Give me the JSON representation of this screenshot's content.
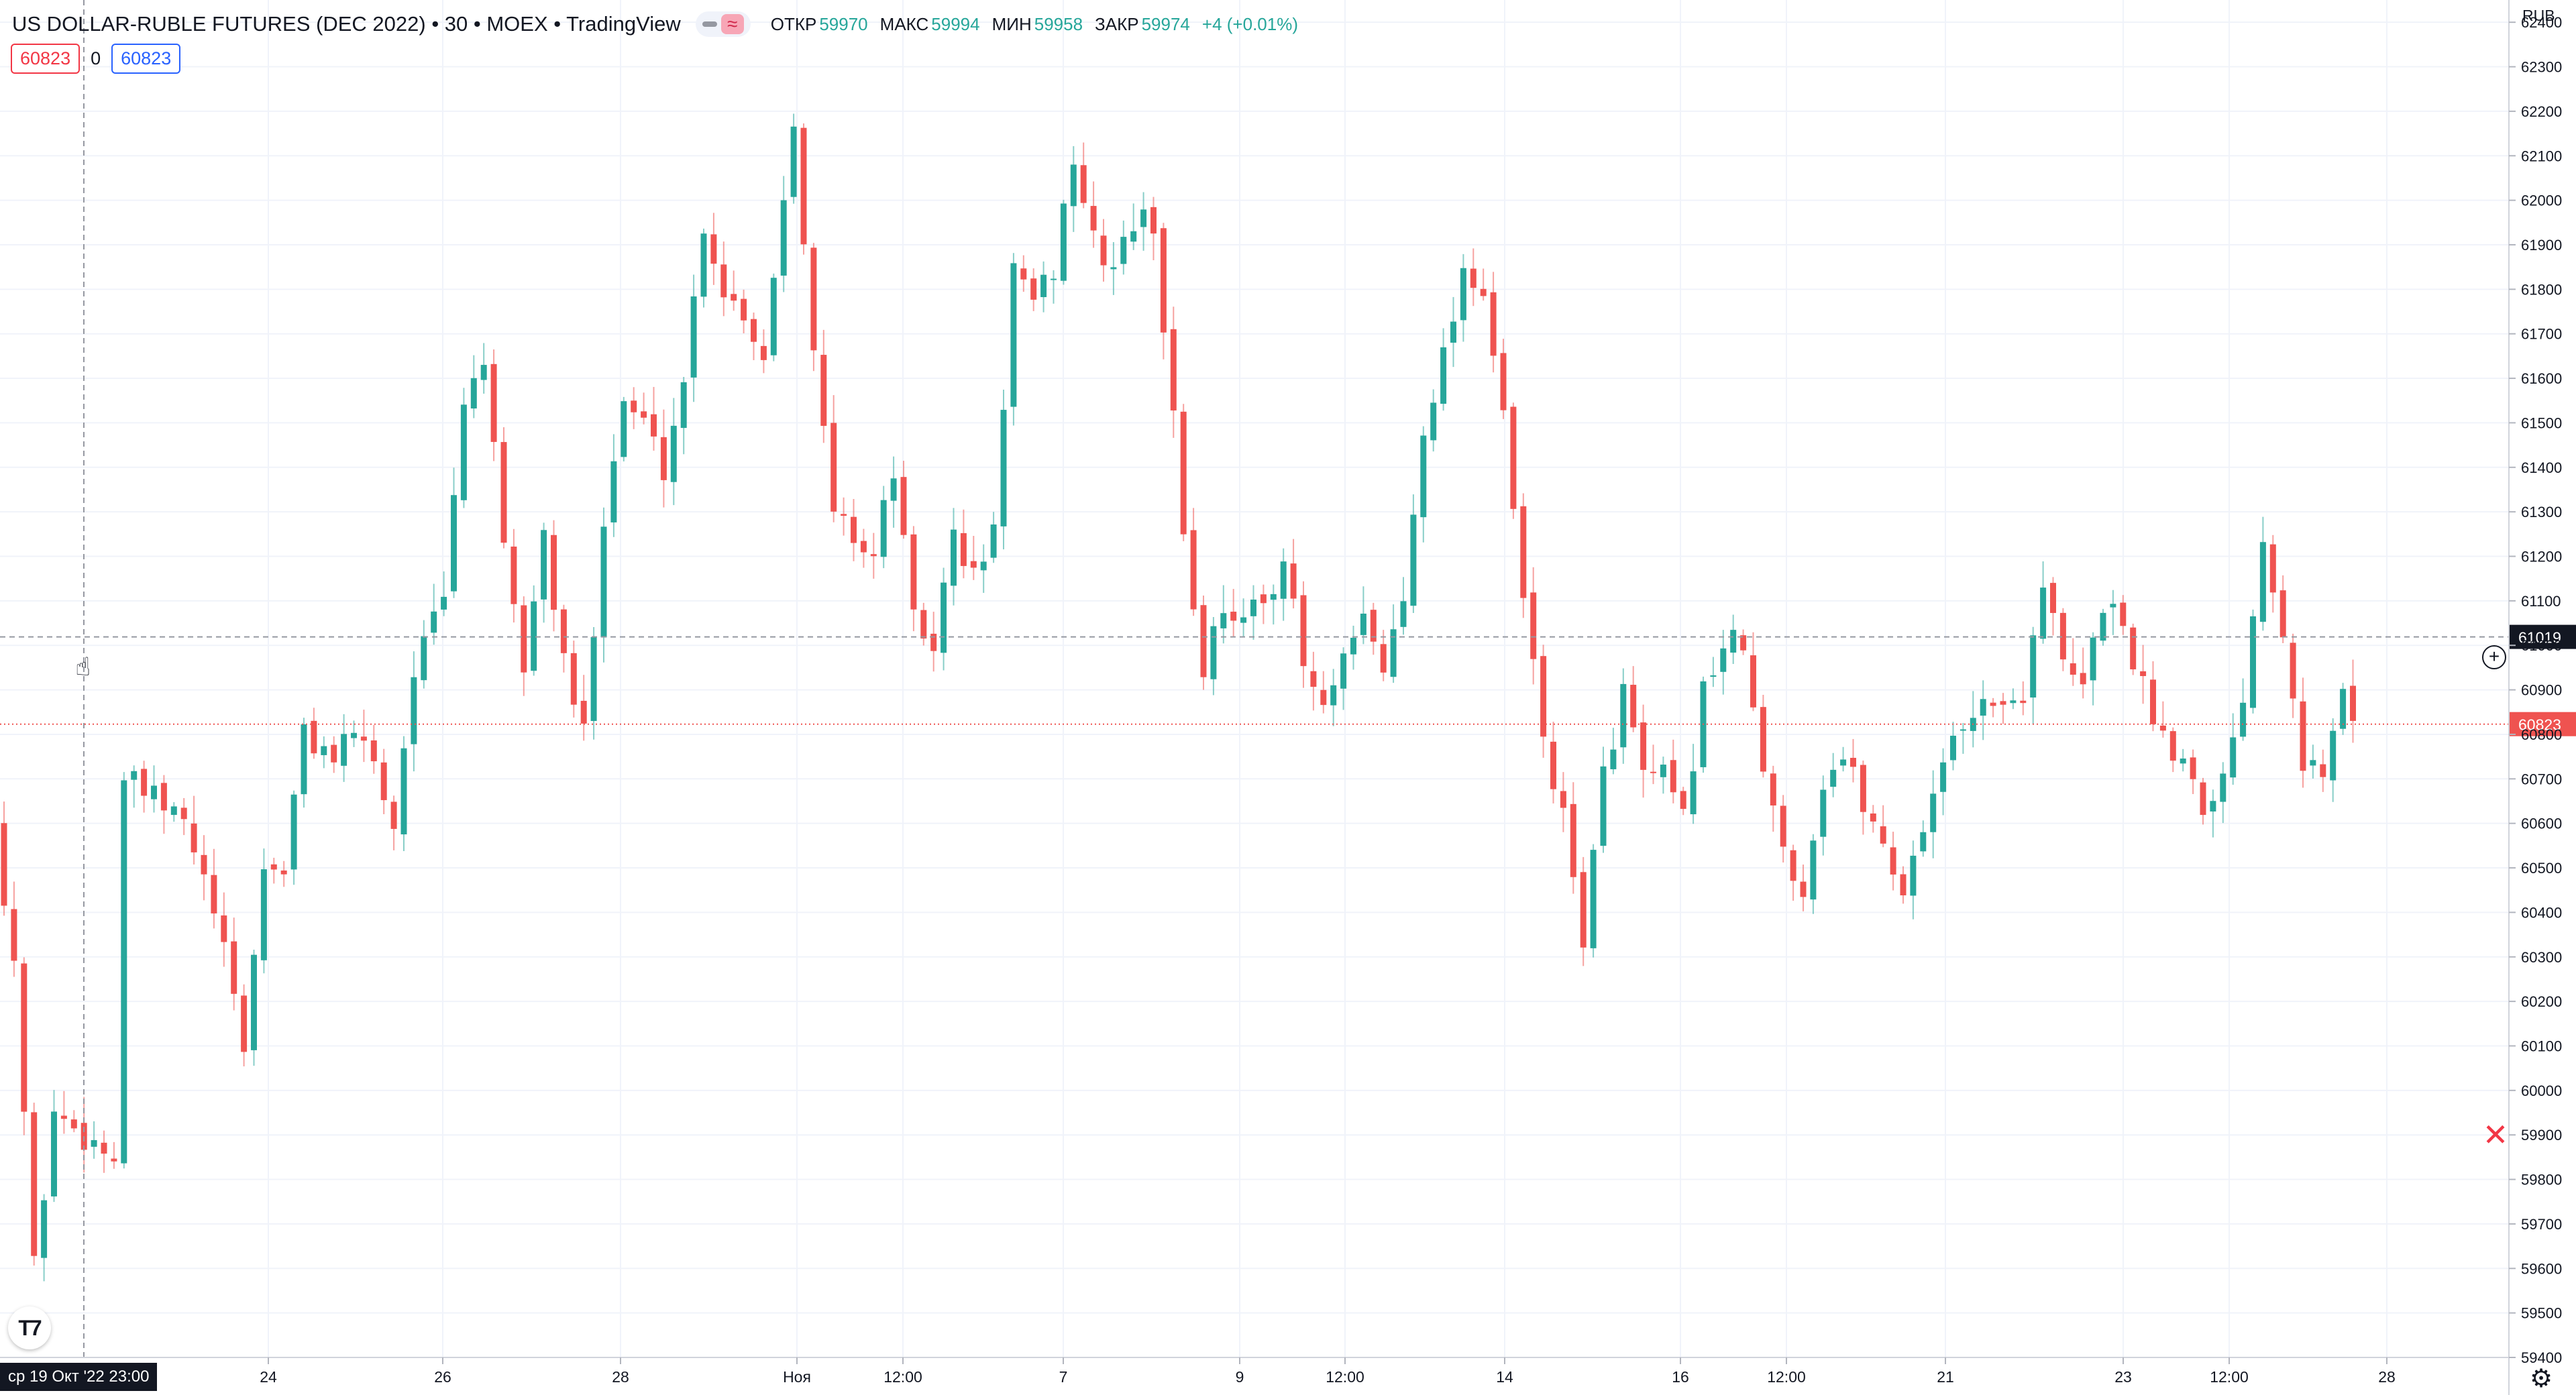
{
  "legend": {
    "title": "US DOLLAR-RUBLE FUTURES (DEC 2022) • 30 • MOEX • TradingView",
    "open_label": "ОТКР",
    "open_value": "59970",
    "high_label": "МАКС",
    "high_value": "59994",
    "low_label": "МИН",
    "low_value": "59958",
    "close_label": "ЗАКР",
    "close_value": "59974",
    "change": "+4 (+0.01%)",
    "toggle_icon": "wave-icon"
  },
  "order_panel": {
    "sell_price": "60823",
    "quantity": "0",
    "buy_price": "60823"
  },
  "currency": "RUB",
  "crosshair": {
    "time_label": "ср 19 Окт '22   23:00",
    "price_label": "61019",
    "price": 61019
  },
  "last_price": {
    "label": "60823",
    "value": 60823
  },
  "colors": {
    "up": "#26a69a",
    "down": "#ef5350",
    "grid": "#f0f3fa",
    "crosshair": "#9598a1"
  },
  "chart_data": {
    "type": "candlestick",
    "title": "US DOLLAR-RUBLE FUTURES (DEC 2022)",
    "ylim": [
      59400,
      62450
    ],
    "y_ticks": [
      59400,
      59500,
      59600,
      59700,
      59800,
      59900,
      60000,
      60100,
      60200,
      60300,
      60400,
      60500,
      60600,
      60700,
      60800,
      60900,
      61000,
      61100,
      61200,
      61300,
      61400,
      61500,
      61600,
      61700,
      61800,
      61900,
      62000,
      62100,
      62200,
      62300,
      62400
    ],
    "x_ticks": [
      "24",
      "26",
      "28",
      "Ноя",
      "12:00",
      "7",
      "9",
      "12:00",
      "14",
      "16",
      "12:00",
      "21",
      "23",
      "12:00",
      "28"
    ],
    "grid": true,
    "close_path": [
      [
        0,
        60600
      ],
      [
        2,
        60300
      ],
      [
        4,
        59600
      ],
      [
        6,
        59950
      ],
      [
        9,
        59900
      ],
      [
        12,
        59850
      ],
      [
        13,
        60700
      ],
      [
        16,
        60650
      ],
      [
        19,
        60600
      ],
      [
        22,
        60400
      ],
      [
        25,
        60100
      ],
      [
        27,
        60500
      ],
      [
        29,
        60500
      ],
      [
        31,
        60800
      ],
      [
        34,
        60750
      ],
      [
        37,
        60800
      ],
      [
        40,
        60600
      ],
      [
        42,
        60950
      ],
      [
        45,
        61100
      ],
      [
        47,
        61550
      ],
      [
        49,
        61650
      ],
      [
        51,
        61200
      ],
      [
        53,
        60950
      ],
      [
        55,
        61250
      ],
      [
        57,
        60950
      ],
      [
        59,
        60800
      ],
      [
        61,
        61300
      ],
      [
        63,
        61550
      ],
      [
        65,
        61500
      ],
      [
        67,
        61400
      ],
      [
        69,
        61600
      ],
      [
        71,
        61950
      ],
      [
        73,
        61800
      ],
      [
        75,
        61750
      ],
      [
        77,
        61650
      ],
      [
        80,
        62200
      ],
      [
        82,
        61650
      ],
      [
        84,
        61300
      ],
      [
        86,
        61250
      ],
      [
        88,
        61200
      ],
      [
        90,
        61400
      ],
      [
        92,
        61050
      ],
      [
        94,
        61000
      ],
      [
        96,
        61250
      ],
      [
        98,
        61150
      ],
      [
        100,
        61250
      ],
      [
        102,
        61850
      ],
      [
        104,
        61750
      ],
      [
        106,
        61850
      ],
      [
        108,
        62100
      ],
      [
        110,
        61900
      ],
      [
        112,
        61850
      ],
      [
        114,
        61950
      ],
      [
        116,
        61950
      ],
      [
        118,
        61500
      ],
      [
        119.5,
        61150
      ],
      [
        121,
        60950
      ],
      [
        123,
        61100
      ],
      [
        125,
        61050
      ],
      [
        127,
        61100
      ],
      [
        129,
        61200
      ],
      [
        131,
        60950
      ],
      [
        133,
        60850
      ],
      [
        135,
        60950
      ],
      [
        137,
        61050
      ],
      [
        139,
        60950
      ],
      [
        141,
        61100
      ],
      [
        143,
        61500
      ],
      [
        145,
        61650
      ],
      [
        147,
        61850
      ],
      [
        149,
        61800
      ],
      [
        151,
        61500
      ],
      [
        153,
        61100
      ],
      [
        155,
        60800
      ],
      [
        157,
        60600
      ],
      [
        159,
        60350
      ],
      [
        161,
        60700
      ],
      [
        163,
        60900
      ],
      [
        165,
        60700
      ],
      [
        167,
        60700
      ],
      [
        169,
        60600
      ],
      [
        171,
        60900
      ],
      [
        173,
        61000
      ],
      [
        175,
        61000
      ],
      [
        177,
        60700
      ],
      [
        179,
        60550
      ],
      [
        181,
        60450
      ],
      [
        183,
        60700
      ],
      [
        185,
        60750
      ],
      [
        187,
        60650
      ],
      [
        189,
        60550
      ],
      [
        191,
        60450
      ],
      [
        193,
        60600
      ],
      [
        195,
        60750
      ],
      [
        197,
        60800
      ],
      [
        199,
        60900
      ],
      [
        201,
        60850
      ],
      [
        203,
        60900
      ],
      [
        205,
        61150
      ],
      [
        207,
        60950
      ],
      [
        209,
        60900
      ],
      [
        211,
        61100
      ],
      [
        213,
        61050
      ],
      [
        215,
        60900
      ],
      [
        217,
        60800
      ],
      [
        219,
        60750
      ],
      [
        221,
        60650
      ],
      [
        223,
        60700
      ],
      [
        225,
        60900
      ],
      [
        227,
        61250
      ],
      [
        229,
        61050
      ],
      [
        231,
        60750
      ],
      [
        233,
        60700
      ],
      [
        235,
        60900
      ],
      [
        236,
        60830
      ]
    ]
  }
}
